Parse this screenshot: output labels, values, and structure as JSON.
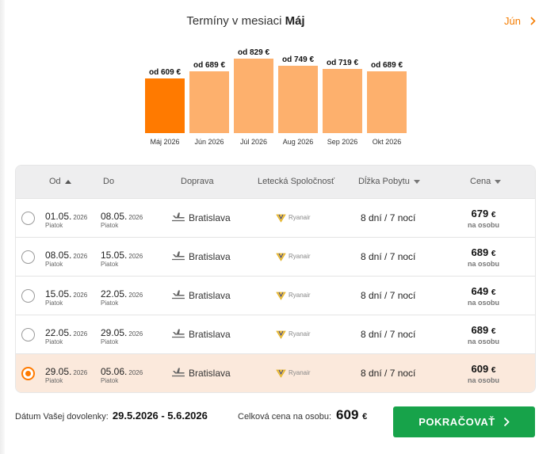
{
  "header": {
    "title_prefix": "Termíny v mesiaci",
    "current_month": "Máj",
    "next_month": "Jún"
  },
  "colors": {
    "accent": "#ff7a00",
    "bar_inactive": "#fdb06d",
    "selected_row": "#fbe9dc",
    "continue": "#17a34a"
  },
  "chart_data": {
    "type": "bar",
    "categories": [
      "Máj 2026",
      "Jún 2026",
      "Júl 2026",
      "Aug 2026",
      "Sep 2026",
      "Okt 2026"
    ],
    "values": [
      609,
      689,
      829,
      749,
      719,
      689
    ],
    "value_labels": [
      "od 609 €",
      "od 689 €",
      "od 829 €",
      "od 749 €",
      "od 719 €",
      "od 689 €"
    ],
    "active_index": 0,
    "title": "",
    "xlabel": "",
    "ylabel": "",
    "ylim": [
      0,
      850
    ],
    "grid": false
  },
  "table": {
    "headers": {
      "from": "Od",
      "to": "Do",
      "transport": "Doprava",
      "airline": "Letecká Spoločnosť",
      "duration": "Dĺžka Pobytu",
      "price": "Cena"
    },
    "rows": [
      {
        "from_date": "01.05.",
        "from_year": "2026",
        "from_day": "Piatok",
        "to_date": "08.05.",
        "to_year": "2026",
        "to_day": "Piatok",
        "city": "Bratislava",
        "airline": "Ryanair",
        "duration": "8 dní / 7 nocí",
        "price": "679",
        "currency": "€",
        "per_person": "na osobu",
        "selected": false
      },
      {
        "from_date": "08.05.",
        "from_year": "2026",
        "from_day": "Piatok",
        "to_date": "15.05.",
        "to_year": "2026",
        "to_day": "Piatok",
        "city": "Bratislava",
        "airline": "Ryanair",
        "duration": "8 dní / 7 nocí",
        "price": "689",
        "currency": "€",
        "per_person": "na osobu",
        "selected": false
      },
      {
        "from_date": "15.05.",
        "from_year": "2026",
        "from_day": "Piatok",
        "to_date": "22.05.",
        "to_year": "2026",
        "to_day": "Piatok",
        "city": "Bratislava",
        "airline": "Ryanair",
        "duration": "8 dní / 7 nocí",
        "price": "649",
        "currency": "€",
        "per_person": "na osobu",
        "selected": false
      },
      {
        "from_date": "22.05.",
        "from_year": "2026",
        "from_day": "Piatok",
        "to_date": "29.05.",
        "to_year": "2026",
        "to_day": "Piatok",
        "city": "Bratislava",
        "airline": "Ryanair",
        "duration": "8 dní / 7 nocí",
        "price": "689",
        "currency": "€",
        "per_person": "na osobu",
        "selected": false
      },
      {
        "from_date": "29.05.",
        "from_year": "2026",
        "from_day": "Piatok",
        "to_date": "05.06.",
        "to_year": "2026",
        "to_day": "Piatok",
        "city": "Bratislava",
        "airline": "Ryanair",
        "duration": "8 dní / 7 nocí",
        "price": "609",
        "currency": "€",
        "per_person": "na osobu",
        "selected": true
      }
    ]
  },
  "footer": {
    "dates_label": "Dátum Vašej dovolenky:",
    "dates_value": "29.5.2026 - 5.6.2026",
    "total_label": "Celková cena na osobu:",
    "total_value": "609",
    "total_currency": "€",
    "continue_label": "POKRAČOVAŤ"
  }
}
